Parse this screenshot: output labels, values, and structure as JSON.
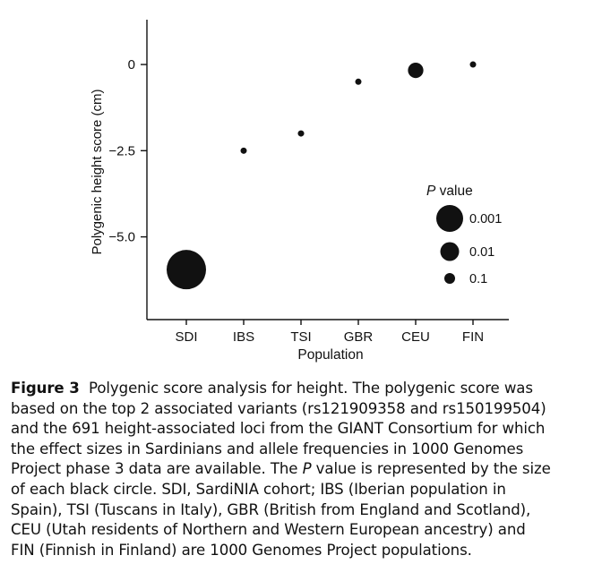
{
  "chart_data": {
    "type": "scatter",
    "xlabel": "Population",
    "ylabel": "Polygenic height score (cm)",
    "categories": [
      "SDI",
      "IBS",
      "TSI",
      "GBR",
      "CEU",
      "FIN"
    ],
    "values": [
      -5.95,
      -2.5,
      -2.0,
      -0.5,
      -0.17,
      0.0
    ],
    "point_size_category": [
      "0.001",
      "0.1",
      "0.1",
      "0.1",
      "0.01",
      "0.1"
    ],
    "ylim": [
      -7.4,
      1.3
    ],
    "yticks": [
      0,
      -2.5,
      -5.0
    ],
    "ytick_labels": [
      "0",
      "−2.5",
      "−5.0"
    ],
    "grid": false,
    "point_color": "#111111",
    "legend": {
      "title_italic": "P",
      "title_rest": " value",
      "placement": "right",
      "entries": [
        {
          "label": "0.001",
          "size": "large"
        },
        {
          "label": "0.01",
          "size": "medium"
        },
        {
          "label": "0.1",
          "size": "small"
        }
      ]
    }
  },
  "caption": {
    "figure_label": "Figure 3",
    "line1_rest": "  Polygenic score analysis for height. The polygenic score was",
    "line2": "based on the top 2 associated variants (rs121909358 and rs150199504)",
    "line3": "and the 691 height-associated loci from the GIANT Consortium for which",
    "line4": "the effect sizes in Sardinians and allele frequencies in 1000 Genomes",
    "line5_pre": "Project phase 3 data are available. The ",
    "line5_italic": "P",
    "line5_post": " value is represented by the size",
    "line6": "of each black circle. SDI, SardiNIA cohort; IBS (Iberian population in",
    "line7": "Spain), TSI (Tuscans in Italy), GBR (British from England and Scotland),",
    "line8": "CEU (Utah residents of Northern and Western European ancestry) and",
    "line9": "FIN (Finnish in Finland) are 1000 Genomes Project populations."
  }
}
